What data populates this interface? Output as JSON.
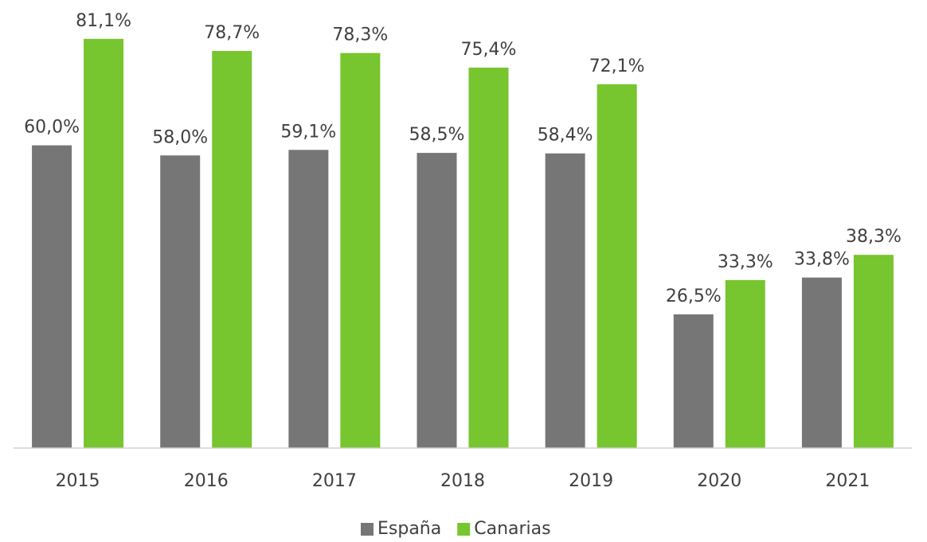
{
  "chart_data": {
    "type": "bar",
    "categories": [
      "2015",
      "2016",
      "2017",
      "2018",
      "2019",
      "2020",
      "2021"
    ],
    "series": [
      {
        "name": "España",
        "color": "#767676",
        "values": [
          60.0,
          58.0,
          59.1,
          58.5,
          58.4,
          26.5,
          33.8
        ],
        "value_labels": [
          "60,0%",
          "58,0%",
          "59,1%",
          "58,5%",
          "58,4%",
          "26,5%",
          "33,8%"
        ]
      },
      {
        "name": "Canarias",
        "color": "#77c52f",
        "values": [
          81.1,
          78.7,
          78.3,
          75.4,
          72.1,
          33.3,
          38.3
        ],
        "value_labels": [
          "81,1%",
          "78,7%",
          "78,3%",
          "75,4%",
          "72,1%",
          "33,3%",
          "38,3%"
        ]
      }
    ],
    "legend": "bottom"
  }
}
